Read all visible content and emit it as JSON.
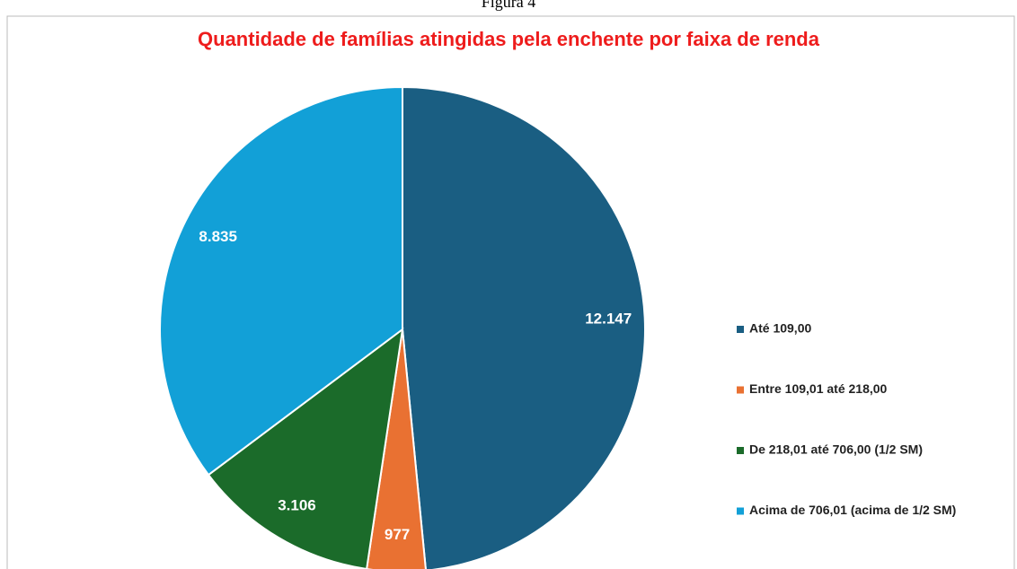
{
  "caption": "Figura 4",
  "chart_data": {
    "type": "pie",
    "title": "Quantidade de famílias atingidas pela enchente por faixa de renda",
    "categories": [
      "Até 109,00",
      "Entre 109,01 até 218,00",
      "De 218,01 até 706,00 (1/2 SM)",
      "Acima de 706,01 (acima de 1/2 SM)"
    ],
    "values": [
      12147,
      977,
      3106,
      8835
    ],
    "value_labels": [
      "12.147",
      "977",
      "3.106",
      "8.835"
    ],
    "colors": [
      "#1a5e82",
      "#e97132",
      "#1b6b2a",
      "#12a0d7"
    ],
    "legend": "right"
  }
}
